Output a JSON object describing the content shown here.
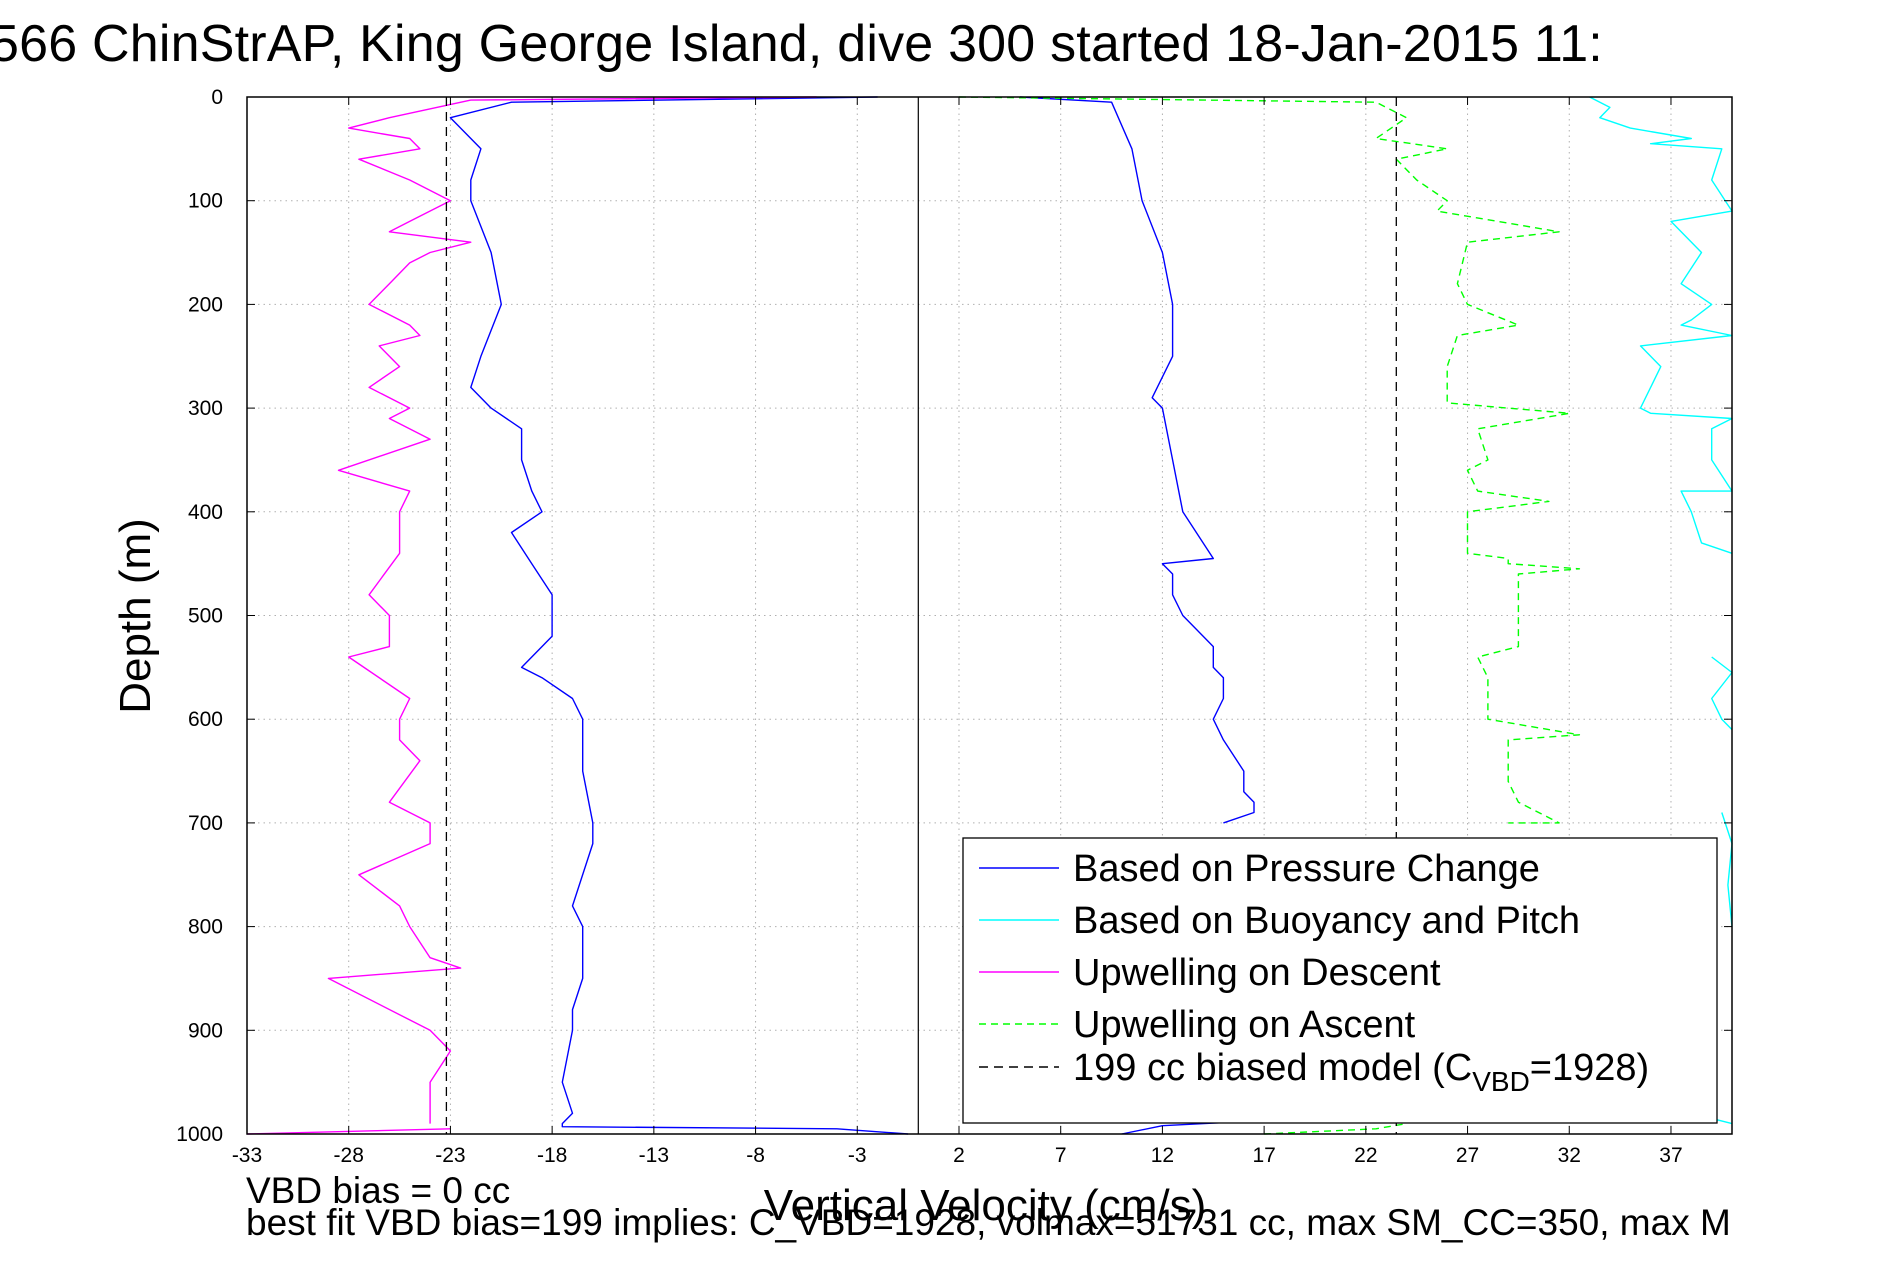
{
  "title": "566 ChinStrAP, King George Island, dive 300 started 18-Jan-2015 11:",
  "footer": {
    "line1": "VBD bias = 0 cc",
    "line2": "best fit VBD bias=199 implies: C_VBD=1928, volmax=51731 cc, max SM_CC=350, max M"
  },
  "chart_data": {
    "type": "line",
    "xlabel": "Vertical Velocity (cm/s)",
    "ylabel": "Depth (m)",
    "xlim": [
      -33,
      40
    ],
    "ylim": [
      0,
      1000
    ],
    "y_reversed": true,
    "xticks": [
      -33,
      -28,
      -23,
      -18,
      -13,
      -8,
      -3,
      2,
      7,
      12,
      17,
      22,
      27,
      32,
      37
    ],
    "yticks": [
      0,
      100,
      200,
      300,
      400,
      500,
      600,
      700,
      800,
      900,
      1000
    ],
    "grid": true,
    "legend_position": "bottom-right",
    "legend": [
      "Based on Pressure Change",
      "Based on Buoyancy and Pitch",
      "Upwelling on Descent",
      "Upwelling on Ascent",
      "199 cc biased model (C_VBD=1928)"
    ],
    "legend_model_parts": {
      "pre": "199 cc biased model (C",
      "sub": "VBD",
      "post": "=1928)"
    },
    "zero_line_x": 0,
    "colors": {
      "pressure": "#0000ff",
      "buoyancy": "#00ffff",
      "upwelling_descent": "#ff00ff",
      "upwelling_ascent": "#00ff00",
      "model": "#000000"
    },
    "series": [
      {
        "name": "Based on Pressure Change",
        "role": "pressure",
        "style": "solid",
        "segments": [
          {
            "x": [
              -2,
              -20,
              -23,
              -21.5,
              -22,
              -22,
              -21,
              -20.5,
              -21.5,
              -22,
              -21,
              -19.5,
              -19.5,
              -19,
              -18.5,
              -20,
              -19,
              -18,
              -18,
              -19.5,
              -18.5,
              -17,
              -16.5,
              -16.5,
              -16,
              -16,
              -17,
              -16.5,
              -16.5,
              -17,
              -17,
              -17.5,
              -17,
              -17.5,
              -17.5,
              -4,
              -0.5
            ],
            "y": [
              0,
              5,
              20,
              50,
              80,
              100,
              150,
              200,
              250,
              280,
              300,
              320,
              350,
              380,
              400,
              420,
              450,
              480,
              520,
              550,
              560,
              580,
              600,
              650,
              700,
              720,
              780,
              800,
              850,
              880,
              900,
              950,
              980,
              990,
              993,
              995,
              1000
            ]
          },
          {
            "x": [
              5,
              9.5,
              10.5,
              11,
              12,
              12.5,
              12.5,
              11.5,
              12,
              12.5,
              13,
              14,
              14.5,
              12,
              12.5,
              12.5,
              13,
              14.5,
              14.5,
              15,
              15,
              14.5,
              15,
              16,
              16,
              16.5,
              16.5,
              15
            ],
            "y": [
              0,
              5,
              50,
              100,
              150,
              200,
              250,
              290,
              300,
              350,
              400,
              430,
              445,
              450,
              460,
              480,
              500,
              530,
              550,
              560,
              580,
              600,
              620,
              650,
              670,
              680,
              690,
              700
            ]
          },
          {
            "x": [
              10,
              12,
              16
            ],
            "y": [
              1000,
              992,
              988
            ]
          }
        ]
      },
      {
        "name": "Based on Buoyancy and Pitch",
        "role": "buoyancy",
        "style": "solid",
        "segments": [
          {
            "x": [
              33,
              34,
              33.5,
              35,
              38,
              36,
              39.5,
              39,
              40,
              37,
              38.5,
              37.5,
              39,
              38,
              37.5,
              40,
              35.5,
              36.5,
              35.5,
              36,
              40,
              39,
              39,
              40,
              37.5,
              38,
              38.5,
              40
            ],
            "y": [
              0,
              10,
              20,
              30,
              40,
              45,
              50,
              80,
              110,
              120,
              150,
              180,
              200,
              215,
              220,
              230,
              240,
              260,
              300,
              305,
              310,
              320,
              350,
              380,
              380,
              400,
              430,
              440
            ]
          },
          {
            "x": [
              39,
              40,
              39,
              39.5,
              40
            ],
            "y": [
              540,
              555,
              580,
              600,
              610
            ]
          },
          {
            "x": [
              39.5,
              40,
              39.8,
              40
            ],
            "y": [
              690,
              720,
              760,
              800
            ]
          },
          {
            "x": [
              38,
              40
            ],
            "y": [
              980,
              990
            ]
          }
        ]
      },
      {
        "name": "Upwelling on Descent",
        "role": "upwelling_descent",
        "style": "solid",
        "segments": [
          {
            "x": [
              -5,
              -22,
              -26,
              -28,
              -25,
              -24.5,
              -27.5,
              -25,
              -23,
              -25,
              -26,
              -22,
              -24,
              -25,
              -26,
              -27,
              -25,
              -24.5,
              -26.5,
              -25.5,
              -27,
              -25,
              -26,
              -24,
              -28.5,
              -25,
              -25.5,
              -25.5,
              -27,
              -26,
              -26,
              -28,
              -25,
              -25.5,
              -25.5,
              -24.5,
              -26,
              -24,
              -24,
              -27.5,
              -25.5,
              -25,
              -24,
              -22.5,
              -29,
              -24,
              -23,
              -24,
              -24
            ],
            "y": [
              0,
              3,
              20,
              30,
              40,
              50,
              60,
              80,
              100,
              120,
              130,
              140,
              150,
              160,
              180,
              200,
              220,
              230,
              240,
              260,
              280,
              300,
              310,
              330,
              360,
              380,
              400,
              440,
              480,
              500,
              530,
              540,
              580,
              600,
              620,
              640,
              680,
              700,
              720,
              750,
              780,
              800,
              830,
              840,
              850,
              900,
              920,
              950,
              990
            ]
          },
          {
            "x": [
              -33,
              -23
            ],
            "y": [
              1000,
              995
            ]
          }
        ]
      },
      {
        "name": "Upwelling on Ascent",
        "role": "upwelling_ascent",
        "style": "dashed",
        "segments": [
          {
            "x": [
              2,
              22.5,
              24,
              22.5,
              26,
              23.5,
              24.5,
              26,
              25.5,
              31.5,
              27,
              26.5,
              27,
              29.5,
              26.5,
              26,
              26,
              32,
              27.5,
              28,
              27,
              27.5,
              31,
              27,
              27,
              29,
              29,
              32.5,
              29.5,
              29.5,
              29.5,
              27.5,
              28,
              28,
              32.5,
              29,
              29,
              29.5,
              31.5,
              29,
              29,
              29,
              29
            ],
            "y": [
              0,
              5,
              20,
              40,
              50,
              60,
              80,
              100,
              110,
              130,
              140,
              180,
              200,
              220,
              230,
              260,
              295,
              305,
              320,
              350,
              360,
              380,
              390,
              400,
              440,
              445,
              450,
              455,
              460,
              500,
              530,
              540,
              560,
              600,
              615,
              620,
              660,
              680,
              700,
              700,
              700,
              700,
              700
            ]
          },
          {
            "x": [
              17,
              22.5,
              24
            ],
            "y": [
              1000,
              995,
              990
            ]
          }
        ]
      },
      {
        "name": "199 cc biased model (C_VBD=1928)",
        "role": "model",
        "style": "dashed",
        "segments": [
          {
            "x": [
              -23.2,
              -23.2
            ],
            "y": [
              0,
              1000
            ]
          },
          {
            "x": [
              23.5,
              23.5
            ],
            "y": [
              0,
              1000
            ]
          }
        ]
      }
    ]
  }
}
